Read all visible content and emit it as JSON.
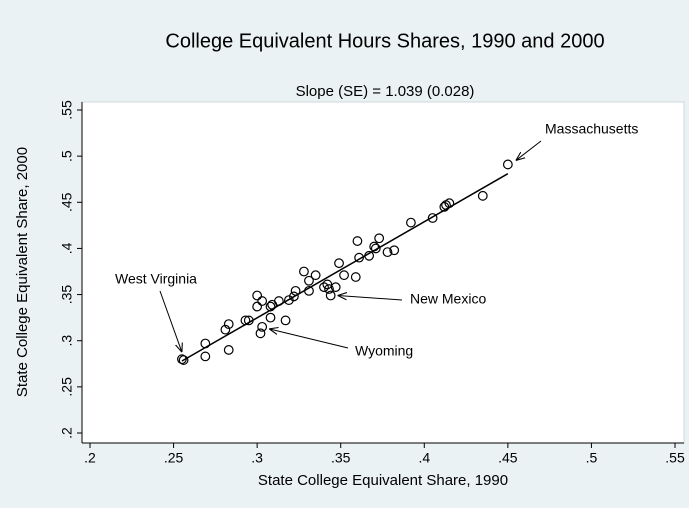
{
  "chart_data": {
    "type": "scatter",
    "title": "College Equivalent Hours Shares, 1990 and 2000",
    "subtitle": "Slope (SE) = 1.039 (0.028)",
    "x_label": "State College Equivalent Share, 1990",
    "y_label": "State College Equivalent Share, 2000",
    "xlim": [
      0.2,
      0.55
    ],
    "ylim": [
      0.2,
      0.55
    ],
    "xticks": [
      {
        "value": 0.2,
        "label": ".2"
      },
      {
        "value": 0.25,
        "label": ".25"
      },
      {
        "value": 0.3,
        "label": ".3"
      },
      {
        "value": 0.35,
        "label": ".35"
      },
      {
        "value": 0.4,
        "label": ".4"
      },
      {
        "value": 0.45,
        "label": ".45"
      },
      {
        "value": 0.5,
        "label": ".5"
      },
      {
        "value": 0.55,
        "label": ".55"
      }
    ],
    "yticks": [
      {
        "value": 0.2,
        "label": ".2"
      },
      {
        "value": 0.25,
        "label": ".25"
      },
      {
        "value": 0.3,
        "label": ".3"
      },
      {
        "value": 0.35,
        "label": ".35"
      },
      {
        "value": 0.4,
        "label": ".4"
      },
      {
        "value": 0.45,
        "label": ".45"
      },
      {
        "value": 0.5,
        "label": ".5"
      },
      {
        "value": 0.55,
        "label": ".55"
      }
    ],
    "grid": false,
    "color": "#000000",
    "x": [
      0.255,
      0.256,
      0.269,
      0.269,
      0.283,
      0.281,
      0.283,
      0.293,
      0.295,
      0.3,
      0.3,
      0.303,
      0.302,
      0.303,
      0.308,
      0.308,
      0.309,
      0.313,
      0.317,
      0.319,
      0.322,
      0.323,
      0.328,
      0.331,
      0.331,
      0.335,
      0.34,
      0.342,
      0.343,
      0.344,
      0.347,
      0.349,
      0.352,
      0.359,
      0.36,
      0.361,
      0.367,
      0.37,
      0.371,
      0.373,
      0.378,
      0.382,
      0.392,
      0.405,
      0.412,
      0.413,
      0.415,
      0.435,
      0.45
    ],
    "values": [
      0.28,
      0.279,
      0.297,
      0.283,
      0.29,
      0.312,
      0.318,
      0.322,
      0.322,
      0.349,
      0.337,
      0.343,
      0.308,
      0.315,
      0.325,
      0.337,
      0.339,
      0.343,
      0.322,
      0.344,
      0.348,
      0.354,
      0.375,
      0.365,
      0.354,
      0.371,
      0.358,
      0.361,
      0.356,
      0.349,
      0.358,
      0.384,
      0.371,
      0.369,
      0.408,
      0.39,
      0.392,
      0.402,
      0.4,
      0.411,
      0.396,
      0.398,
      0.428,
      0.433,
      0.445,
      0.447,
      0.449,
      0.457,
      0.491
    ],
    "fit_line": {
      "x": [
        0.255,
        0.45
      ],
      "y": [
        0.278,
        0.481
      ]
    },
    "annotations": [
      {
        "text": "Massachusetts",
        "x": 0.45,
        "y": 0.491
      },
      {
        "text": "West Virginia",
        "x": 0.255,
        "y": 0.28
      },
      {
        "text": "New Mexico",
        "x": 0.344,
        "y": 0.349
      },
      {
        "text": "Wyoming",
        "x": 0.303,
        "y": 0.315
      }
    ]
  }
}
